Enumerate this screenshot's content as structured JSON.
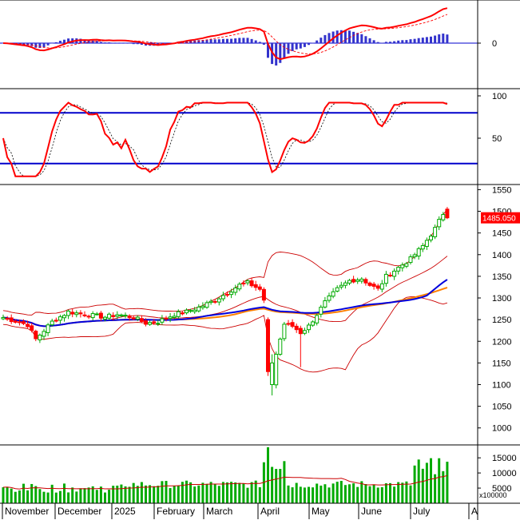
{
  "chart_data": {
    "type": "candlestick",
    "panels": {
      "macd": {
        "y_ticks": [
          "0"
        ],
        "series": [
          "MACD",
          "Signal",
          "Histogram"
        ]
      },
      "stochastic": {
        "y_ticks": [
          "100",
          "50"
        ],
        "levels": [
          80,
          20
        ],
        "ylim": [
          0,
          100
        ]
      },
      "price": {
        "y_ticks": [
          "1550",
          "1500",
          "1450",
          "1400",
          "1350",
          "1300",
          "1250",
          "1200",
          "1150",
          "1100",
          "1050",
          "1000"
        ],
        "ylim": [
          970,
          1560
        ],
        "last_price_label": "1485.050",
        "waypoints": [
          [
            0,
            1255
          ],
          [
            6,
            1238
          ],
          [
            8,
            1205
          ],
          [
            12,
            1245
          ],
          [
            16,
            1268
          ],
          [
            20,
            1262
          ],
          [
            25,
            1256
          ],
          [
            28,
            1262
          ],
          [
            32,
            1255
          ],
          [
            35,
            1242
          ],
          [
            38,
            1245
          ],
          [
            42,
            1262
          ],
          [
            45,
            1268
          ],
          [
            48,
            1278
          ],
          [
            52,
            1295
          ],
          [
            55,
            1312
          ],
          [
            58,
            1330
          ],
          [
            60,
            1335
          ],
          [
            63,
            1320
          ],
          [
            64,
            1295
          ],
          [
            65,
            1130
          ],
          [
            66,
            1100
          ],
          [
            67,
            1170
          ],
          [
            69,
            1240
          ],
          [
            71,
            1235
          ],
          [
            73,
            1220
          ],
          [
            75,
            1235
          ],
          [
            77,
            1262
          ],
          [
            79,
            1290
          ],
          [
            82,
            1320
          ],
          [
            85,
            1340
          ],
          [
            88,
            1345
          ],
          [
            90,
            1330
          ],
          [
            92,
            1320
          ],
          [
            94,
            1350
          ],
          [
            97,
            1370
          ],
          [
            100,
            1390
          ],
          [
            103,
            1420
          ],
          [
            106,
            1460
          ],
          [
            108,
            1495
          ],
          [
            109,
            1485
          ]
        ]
      },
      "volume": {
        "y_ticks": [
          "15000",
          "10000",
          "5000"
        ],
        "unit_label": "x100000",
        "ylim": [
          0,
          19000
        ]
      }
    },
    "x_axis": {
      "labels": [
        "November",
        "December",
        "2025",
        "February",
        "March",
        "April",
        "May",
        "June",
        "July",
        "A"
      ]
    },
    "colors": {
      "up_candle": "#00aa00",
      "down_candle": "#ff0000",
      "signal_line": "#0000cc",
      "bollinger": "#cc0000",
      "ma_orange": "#ff8000",
      "ma_blue": "#0000dd",
      "histogram": "#3333cc",
      "volume_bar": "#00aa00"
    }
  }
}
